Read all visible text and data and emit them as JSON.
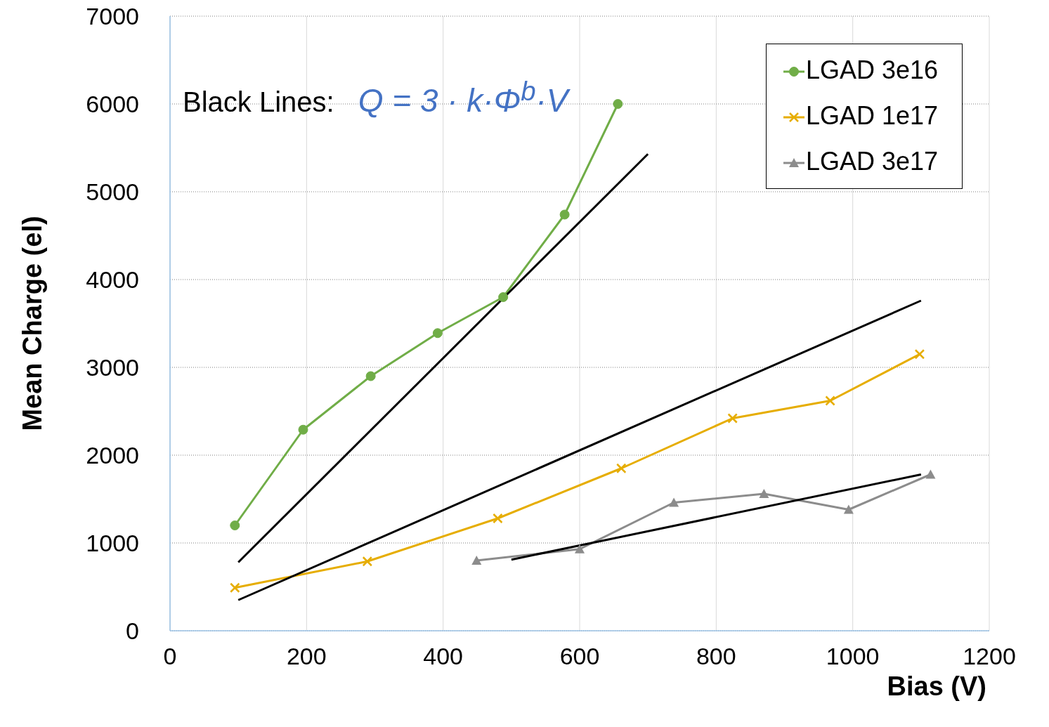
{
  "chart_data": {
    "type": "line",
    "xlabel": "Bias (V)",
    "ylabel": "Mean Charge (el)",
    "annotations": [
      "Black Lines:",
      "Q = 3 · k·Φ$^{b}$·V"
    ],
    "xlim": [
      0,
      1200
    ],
    "xticks": [
      0,
      200,
      400,
      600,
      800,
      1000,
      1200
    ],
    "ylim": [
      0,
      7000
    ],
    "yticks": [
      0,
      1000,
      2000,
      3000,
      4000,
      5000,
      6000,
      7000
    ],
    "grid": true,
    "legend": "top right",
    "series": [
      {
        "name": "LGAD 3e16",
        "color": "#70ad47",
        "marker": "circle",
        "x": [
          95,
          195,
          294,
          392,
          488,
          578,
          656
        ],
        "values": [
          1200,
          2290,
          2900,
          3390,
          3800,
          4740,
          6000
        ]
      },
      {
        "name": "LGAD 1e17",
        "color": "#e6ad00",
        "marker": "cross",
        "x": [
          95,
          289,
          480,
          661,
          824,
          967,
          1098
        ],
        "values": [
          490,
          790,
          1280,
          1850,
          2420,
          2620,
          3150
        ]
      },
      {
        "name": "LGAD 3e17",
        "color": "#8c8c8c",
        "marker": "triangle",
        "x": [
          449,
          600,
          738,
          870,
          994,
          1114
        ],
        "values": [
          800,
          930,
          1460,
          1560,
          1380,
          1780
        ]
      },
      {
        "type": "line",
        "color": "#000000",
        "marker": "none",
        "x": [
          100,
          700
        ],
        "values": [
          780,
          5430
        ]
      },
      {
        "type": "line",
        "color": "#000000",
        "marker": "none",
        "x": [
          100,
          1100
        ],
        "values": [
          350,
          3760
        ]
      },
      {
        "type": "line",
        "color": "#000000",
        "marker": "none",
        "x": [
          500,
          1100
        ],
        "values": [
          810,
          1780
        ]
      }
    ]
  }
}
